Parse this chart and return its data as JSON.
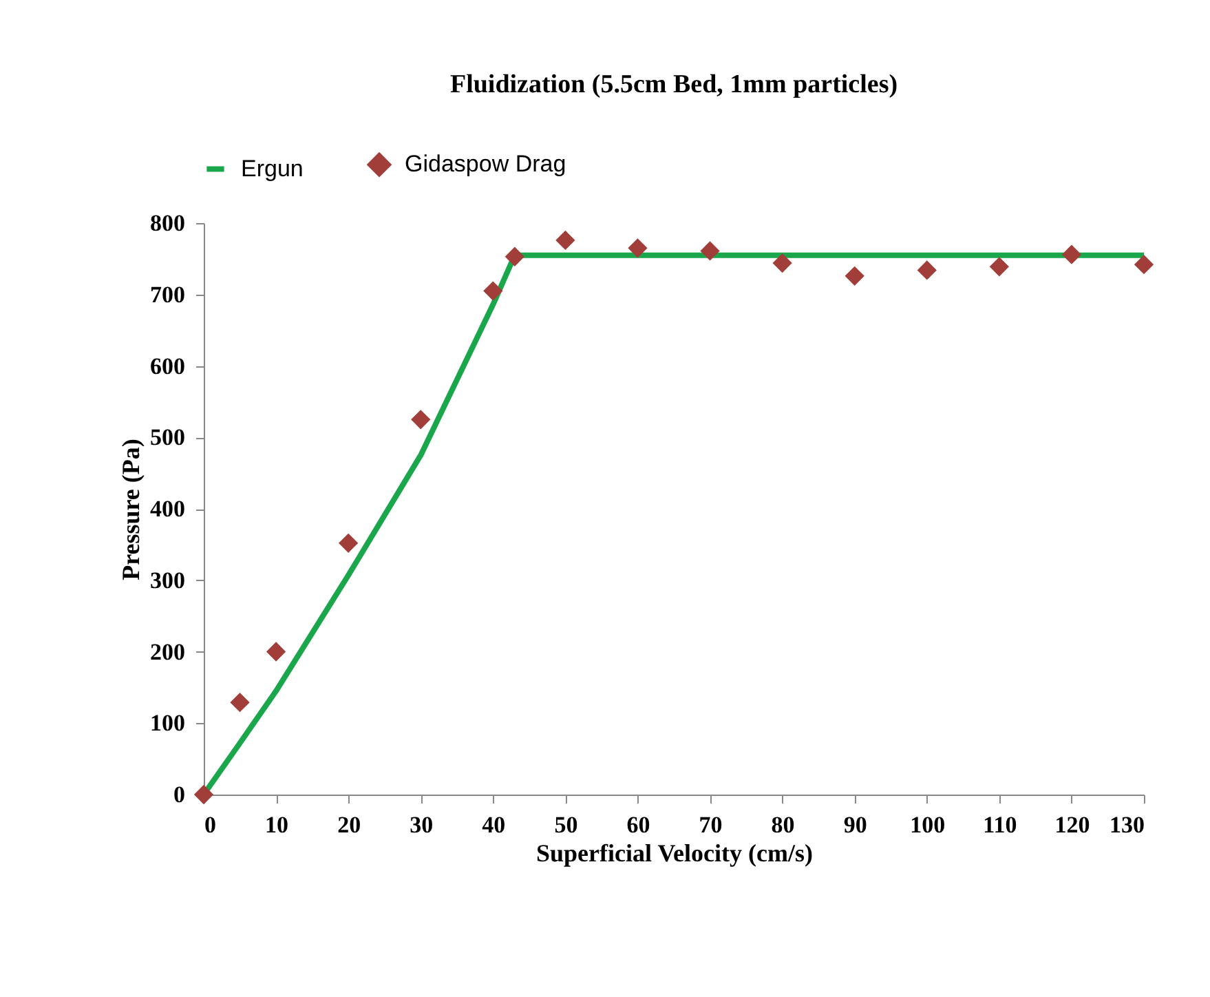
{
  "chart_data": {
    "type": "line",
    "title": "Fluidization (5.5cm Bed, 1mm particles)",
    "xlabel": "Superficial Velocity (cm/s)",
    "ylabel": "Pressure (Pa)",
    "xlim": [
      0,
      130
    ],
    "xticks": [
      0,
      10,
      20,
      30,
      40,
      50,
      60,
      70,
      80,
      90,
      100,
      110,
      120,
      130
    ],
    "ylim": [
      0,
      800
    ],
    "yticks": [
      0,
      100,
      200,
      300,
      400,
      500,
      600,
      700,
      800
    ],
    "grid": false,
    "legend": "top",
    "series": [
      {
        "name": "Ergun",
        "color": "#1aa64a",
        "line_style": "solid",
        "marker": "none",
        "x": [
          0,
          5,
          10,
          20,
          30,
          40,
          43,
          50,
          130
        ],
        "values": [
          0,
          72,
          145,
          307,
          475,
          686,
          755,
          755,
          755
        ]
      },
      {
        "name": "Gidaspow Drag",
        "type": "scatter",
        "color": "#a23e3a",
        "marker": "diamond",
        "x": [
          0,
          5,
          10,
          20,
          30,
          40,
          43,
          50,
          60,
          70,
          80,
          90,
          100,
          110,
          120,
          130
        ],
        "values": [
          0,
          129,
          200,
          352,
          525,
          705,
          753,
          776,
          765,
          761,
          744,
          726,
          734,
          739,
          756,
          742
        ]
      }
    ]
  }
}
